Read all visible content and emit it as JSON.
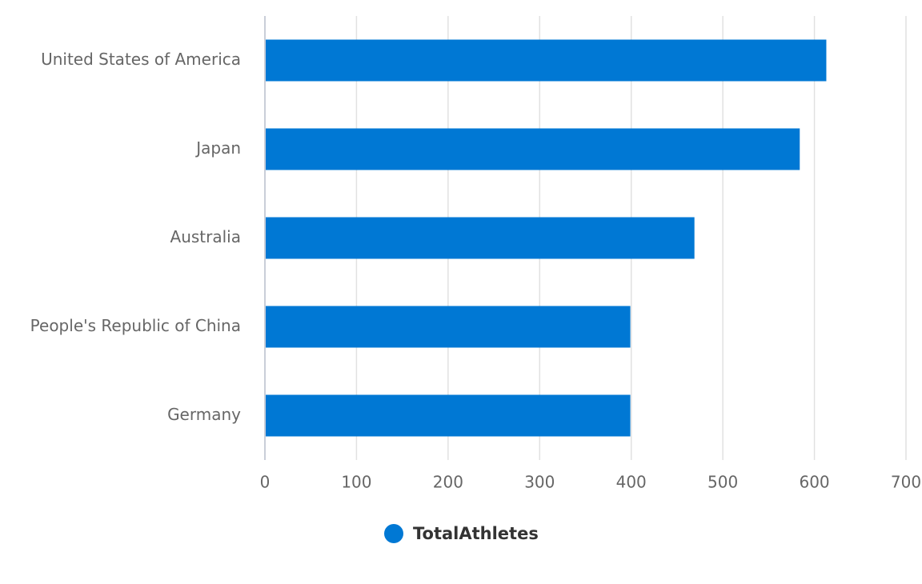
{
  "chart_data": {
    "type": "bar",
    "orientation": "horizontal",
    "categories": [
      "United States of America",
      "Japan",
      "Australia",
      "People's Republic of China",
      "Germany"
    ],
    "series": [
      {
        "name": "TotalAthletes",
        "values": [
          613,
          584,
          469,
          399,
          399
        ],
        "color": "#0078d4"
      }
    ],
    "xlim": [
      0,
      700
    ],
    "x_ticks": [
      0,
      100,
      200,
      300,
      400,
      500,
      600,
      700
    ],
    "grid": true,
    "legend_position": "bottom-center"
  },
  "legend": {
    "label": "TotalAthletes",
    "color": "#0078d4"
  }
}
